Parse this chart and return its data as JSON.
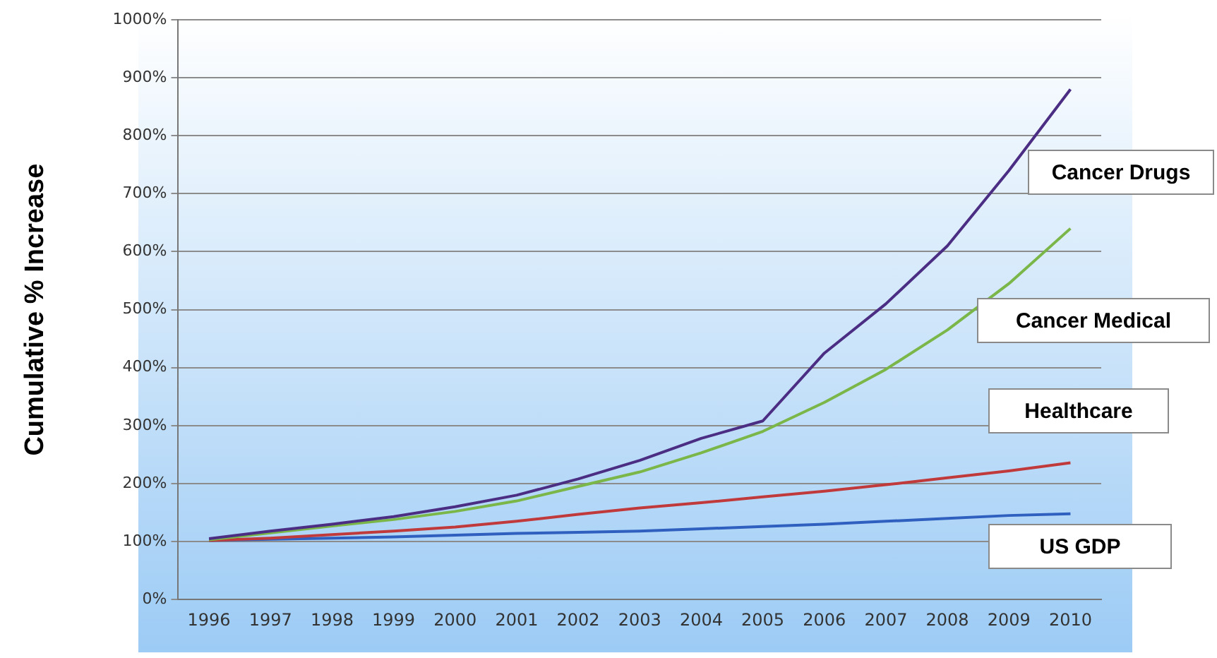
{
  "chart_data": {
    "type": "line",
    "ylabel": "Cumulative % Increase",
    "categories": [
      "1996",
      "1997",
      "1998",
      "1999",
      "2000",
      "2001",
      "2002",
      "2003",
      "2004",
      "2005",
      "2006",
      "2007",
      "2008",
      "2009",
      "2010"
    ],
    "series": [
      {
        "name": "Cancer Drugs",
        "color": "#4b2e83",
        "values": [
          105,
          118,
          130,
          143,
          160,
          180,
          208,
          240,
          278,
          308,
          425,
          510,
          610,
          740,
          880
        ]
      },
      {
        "name": "Cancer Medical",
        "color": "#7ab648",
        "values": [
          103,
          115,
          127,
          138,
          152,
          170,
          195,
          220,
          253,
          290,
          340,
          397,
          465,
          545,
          640
        ]
      },
      {
        "name": "Healthcare",
        "color": "#c0393b",
        "values": [
          102,
          106,
          112,
          118,
          125,
          135,
          147,
          158,
          167,
          177,
          187,
          198,
          210,
          222,
          236
        ]
      },
      {
        "name": "US GDP",
        "color": "#2f5fbf",
        "values": [
          102,
          104,
          106,
          108,
          111,
          114,
          116,
          118,
          122,
          126,
          130,
          135,
          140,
          145,
          148
        ]
      }
    ],
    "ylim": [
      0,
      1000
    ],
    "yticks": [
      {
        "value": 0,
        "label": "0%"
      },
      {
        "value": 100,
        "label": "100%"
      },
      {
        "value": 200,
        "label": "200%"
      },
      {
        "value": 300,
        "label": "300%"
      },
      {
        "value": 400,
        "label": "400%"
      },
      {
        "value": 500,
        "label": "500%"
      },
      {
        "value": 600,
        "label": "600%"
      },
      {
        "value": 700,
        "label": "700%"
      },
      {
        "value": 800,
        "label": "800%"
      },
      {
        "value": 900,
        "label": "900%"
      },
      {
        "value": 1000,
        "label": "1000%"
      }
    ],
    "grid": "y",
    "legend": false,
    "marker": "none",
    "line_style": "solid"
  }
}
